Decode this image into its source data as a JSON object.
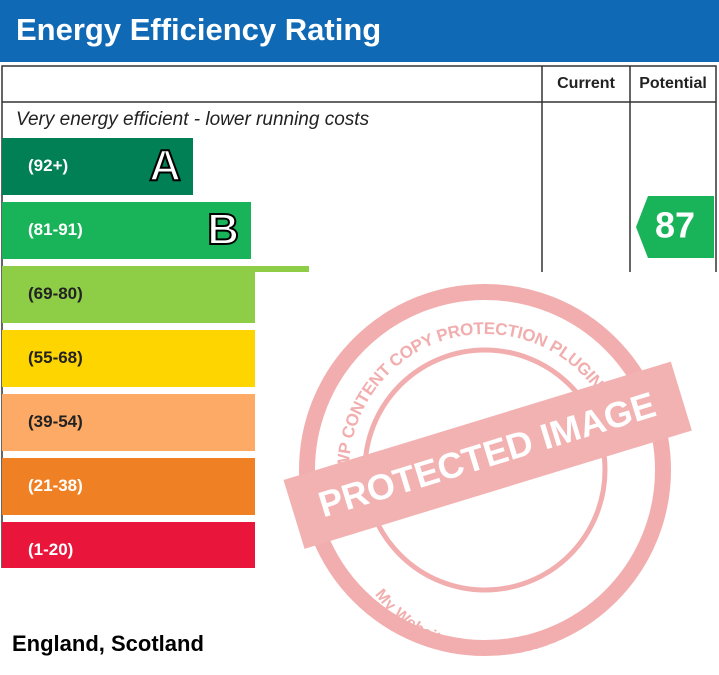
{
  "header": {
    "title": "Energy Efficiency Rating"
  },
  "columns": [
    "Current",
    "Potential"
  ],
  "top_note": "Very energy efficient - lower running costs",
  "bands": [
    {
      "range": "(92+)",
      "letter": "A",
      "color": "#008054"
    },
    {
      "range": "(81-91)",
      "letter": "B",
      "color": "#19b459"
    },
    {
      "range": "(69-80)",
      "color": "#8dce46"
    },
    {
      "range": "(55-68)",
      "color": "#ffd500"
    },
    {
      "range": "(39-54)",
      "color": "#fcaa65"
    },
    {
      "range": "(21-38)",
      "color": "#ef8023"
    },
    {
      "range": "(1-20)",
      "color": "#e9153b"
    }
  ],
  "potential": {
    "value": 87,
    "band_color": "#19b459"
  },
  "watermark": {
    "ring_text": "WP CONTENT COPY PROTECTION PLUGIN",
    "banner": "PROTECTED IMAGE",
    "bottom_text": "My Website Name & URL Here"
  },
  "footer": "England, Scotland"
}
